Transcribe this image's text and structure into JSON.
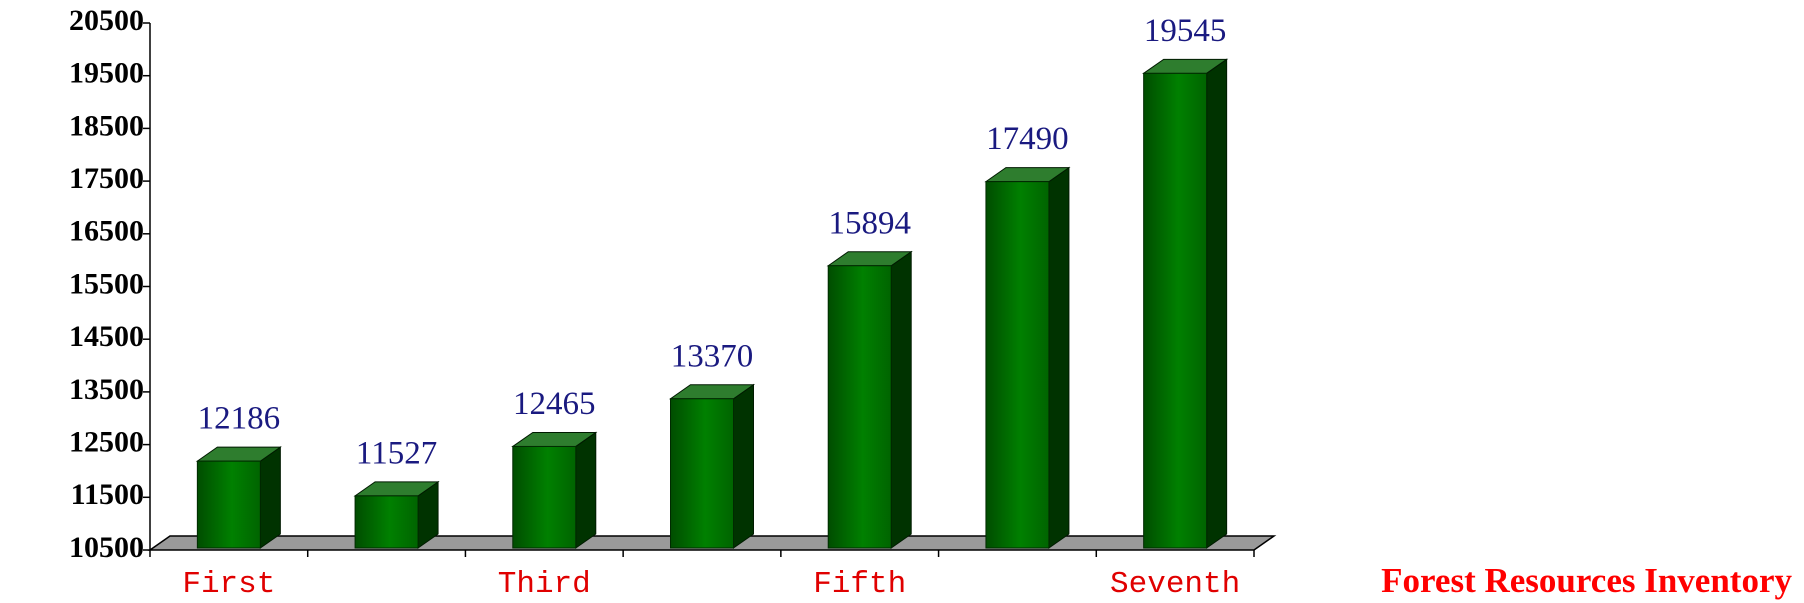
{
  "chart_data": {
    "type": "bar3d",
    "xlabel": "Forest Resources Inventory",
    "categories": [
      "First",
      null,
      "Third",
      null,
      "Fifth",
      null,
      "Seventh"
    ],
    "values": [
      12186,
      11527,
      12465,
      13370,
      15894,
      17490,
      19545
    ],
    "color": "#007a00",
    "ylim": [
      10500,
      20500
    ],
    "yticks": [
      10500,
      11500,
      12500,
      13500,
      14500,
      15500,
      16500,
      17500,
      18500,
      19500,
      20500
    ]
  }
}
